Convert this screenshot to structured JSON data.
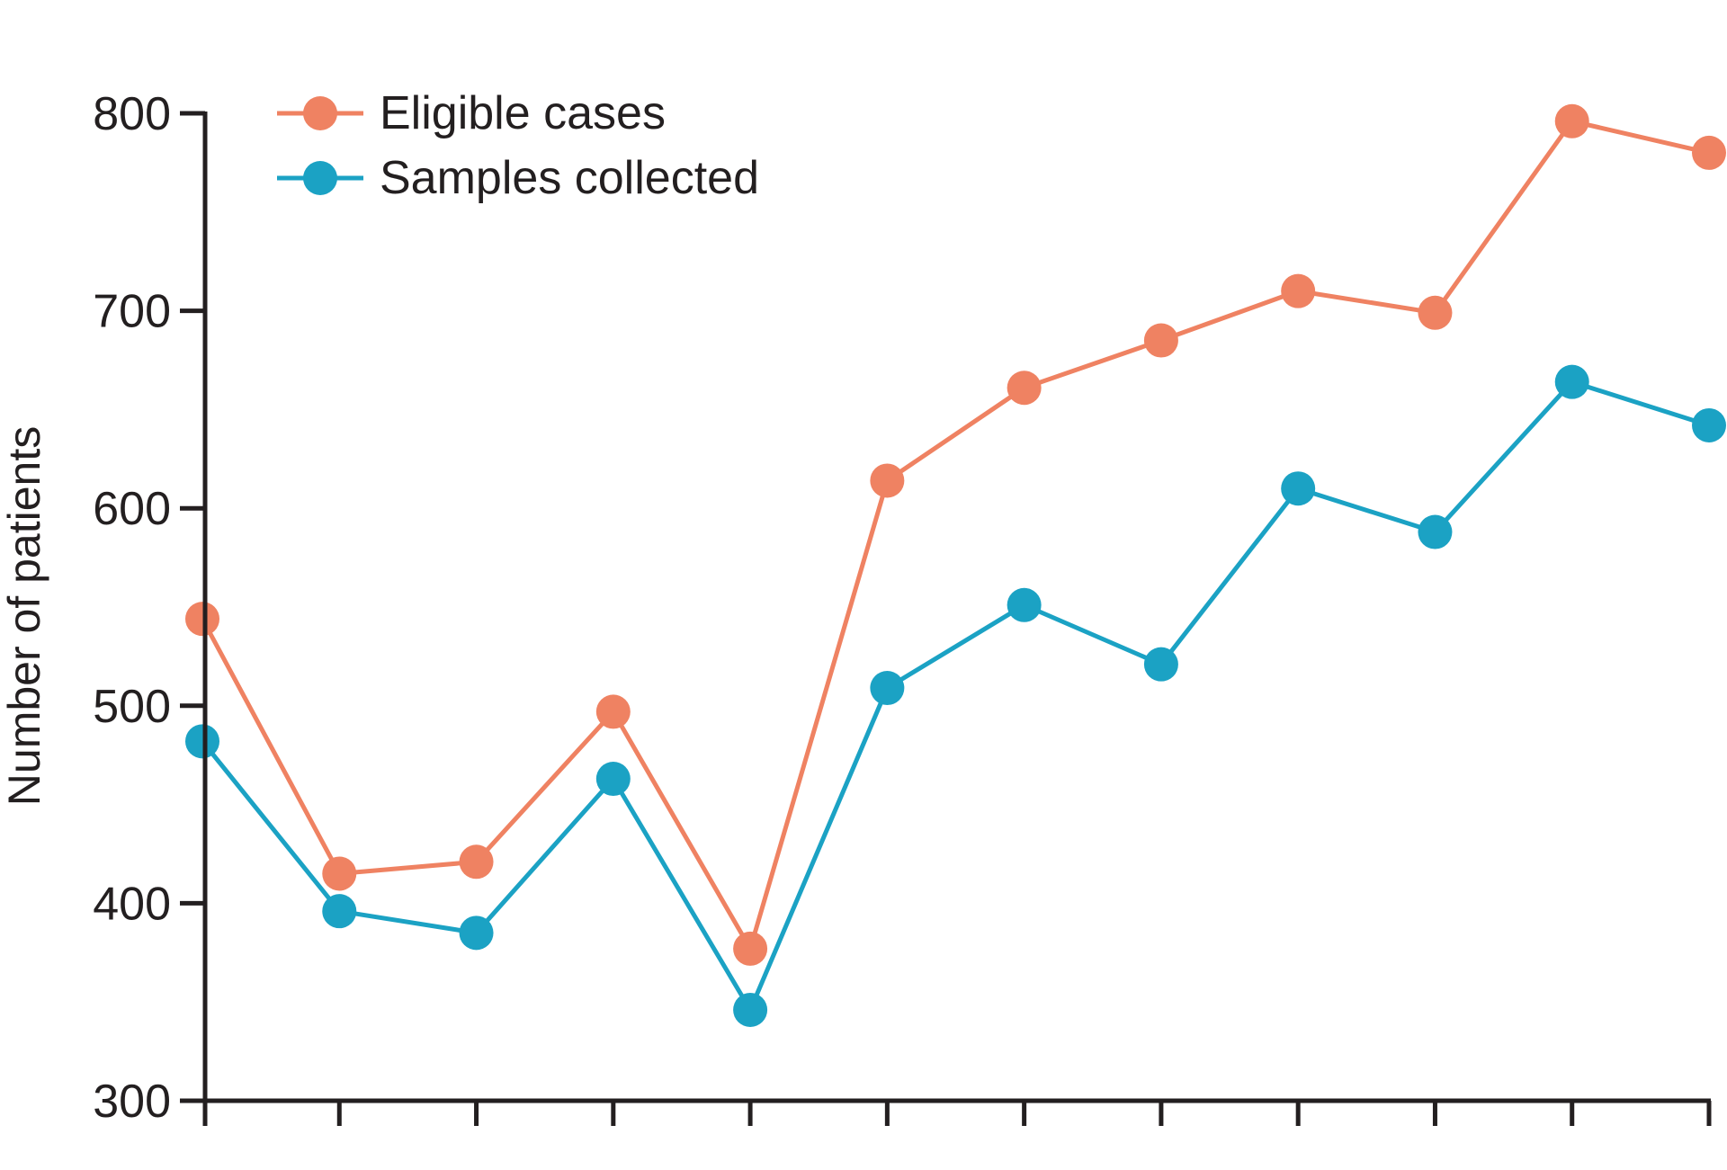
{
  "chart_data": {
    "type": "line",
    "x": [
      1,
      2,
      3,
      4,
      5,
      6,
      7,
      8,
      9,
      10,
      11,
      12
    ],
    "x_tick_labels": [
      "",
      "",
      "",
      "",
      "",
      "",
      "",
      "",
      "",
      "",
      "",
      ""
    ],
    "ylabel": "Number of patients",
    "ylim": [
      300,
      800
    ],
    "yticks": [
      300,
      400,
      500,
      600,
      700,
      800
    ],
    "grid": false,
    "legend_position": "top-left",
    "series": [
      {
        "name": "Eligible cases",
        "color": "#ef8262",
        "values": [
          544,
          415,
          421,
          497,
          377,
          614,
          661,
          685,
          710,
          699,
          796,
          780
        ]
      },
      {
        "name": "Samples collected",
        "color": "#1ba2c4",
        "values": [
          482,
          396,
          385,
          463,
          346,
          509,
          551,
          521,
          610,
          588,
          664,
          642
        ]
      }
    ]
  }
}
